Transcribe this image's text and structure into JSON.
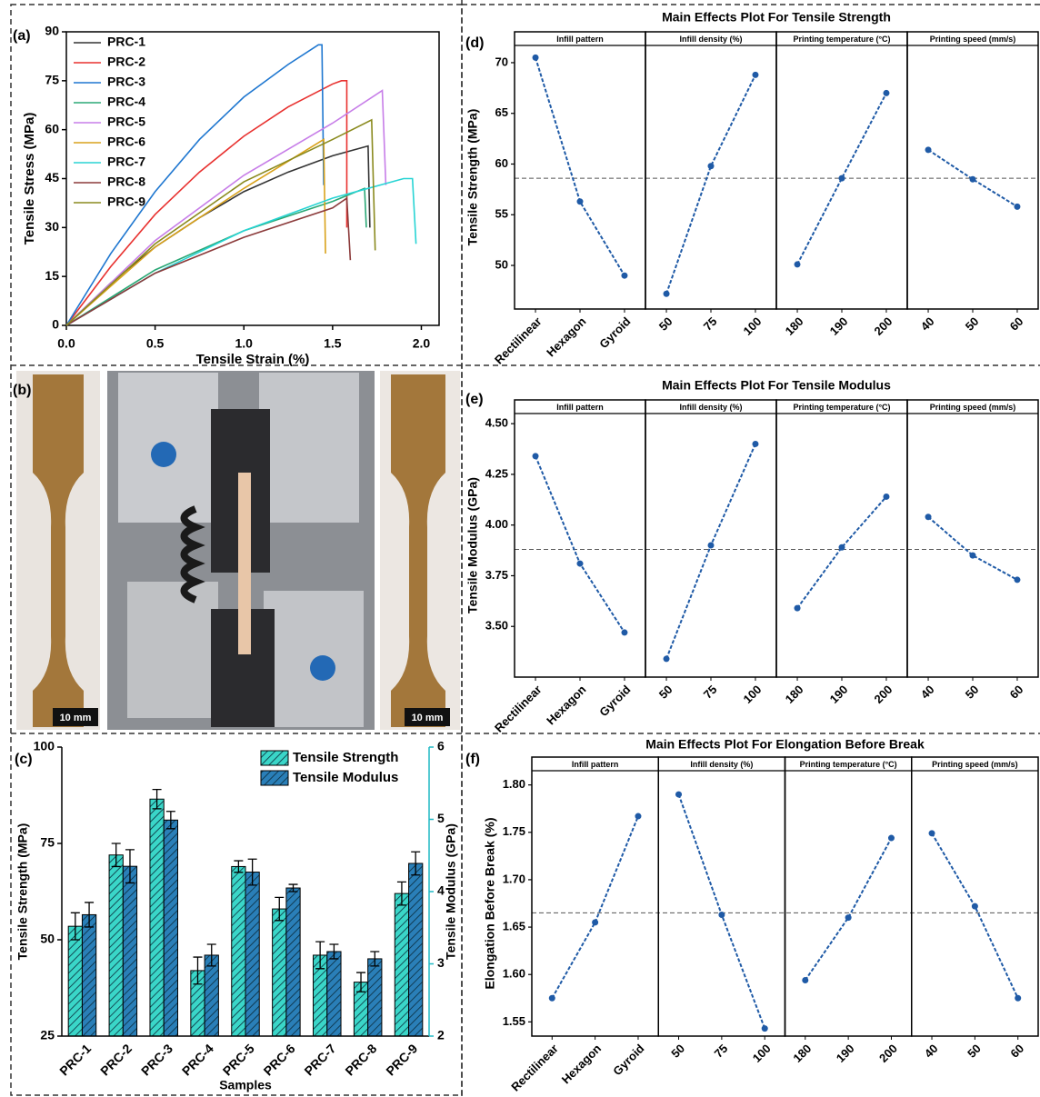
{
  "photo": {
    "label": "(b)",
    "scale_bars": [
      "10 mm",
      "10 mm"
    ]
  },
  "chart_data": [
    {
      "type": "line",
      "label": "(a)",
      "xlabel": "Tensile Strain (%)",
      "ylabel": "Tensile Stress (MPa)",
      "xlim": [
        0,
        2.1
      ],
      "xticks": [
        {
          "value": 0,
          "label": "0.0"
        },
        {
          "value": 0.5,
          "label": "0.5"
        },
        {
          "value": 1,
          "label": "1.0"
        },
        {
          "value": 1.5,
          "label": "1.5"
        },
        {
          "value": 2,
          "label": "2.0"
        }
      ],
      "ylim": [
        0,
        90
      ],
      "yticks": [
        0,
        15,
        30,
        45,
        60,
        75,
        90
      ],
      "legend": "top-left",
      "series": [
        {
          "name": "PRC-1",
          "color": "#333333",
          "x": [
            0,
            0.25,
            0.5,
            0.75,
            1.0,
            1.25,
            1.5,
            1.7,
            1.71
          ],
          "values": [
            0,
            13,
            24,
            33,
            41,
            47,
            52,
            55,
            30
          ]
        },
        {
          "name": "PRC-2",
          "color": "#e8312f",
          "x": [
            0,
            0.25,
            0.5,
            0.75,
            1.0,
            1.25,
            1.5,
            1.55,
            1.58,
            1.58
          ],
          "values": [
            0,
            18,
            34,
            47,
            58,
            67,
            74,
            75,
            75,
            30
          ]
        },
        {
          "name": "PRC-3",
          "color": "#1f77d0",
          "x": [
            0,
            0.25,
            0.5,
            0.75,
            1.0,
            1.25,
            1.42,
            1.44,
            1.45
          ],
          "values": [
            0,
            22,
            41,
            57,
            70,
            80,
            86,
            86,
            43
          ]
        },
        {
          "name": "PRC-4",
          "color": "#2aa876",
          "x": [
            0,
            0.5,
            1.0,
            1.5,
            1.68,
            1.69
          ],
          "values": [
            0,
            17,
            29,
            38,
            42,
            30
          ]
        },
        {
          "name": "PRC-5",
          "color": "#c77ee8",
          "x": [
            0,
            0.5,
            1.0,
            1.5,
            1.78,
            1.8
          ],
          "values": [
            0,
            26,
            46,
            62,
            72,
            43
          ]
        },
        {
          "name": "PRC-6",
          "color": "#d9a21b",
          "x": [
            0,
            0.5,
            1.0,
            1.45,
            1.46
          ],
          "values": [
            0,
            24,
            42,
            57,
            22
          ]
        },
        {
          "name": "PRC-7",
          "color": "#28d4d4",
          "x": [
            0,
            0.5,
            1.0,
            1.5,
            1.9,
            1.95,
            1.97
          ],
          "values": [
            0,
            16,
            29,
            39,
            45,
            45,
            25
          ]
        },
        {
          "name": "PRC-8",
          "color": "#8b3a3a",
          "x": [
            0,
            0.5,
            1.0,
            1.5,
            1.58,
            1.6
          ],
          "values": [
            0,
            16,
            27,
            36,
            39,
            20
          ]
        },
        {
          "name": "PRC-9",
          "color": "#8a8a1e",
          "x": [
            0,
            0.5,
            1.0,
            1.5,
            1.72,
            1.74
          ],
          "values": [
            0,
            25,
            44,
            57,
            63,
            23
          ]
        }
      ]
    },
    {
      "type": "bar",
      "label": "(c)",
      "xlabel": "Samples",
      "ylabel": "Tensile Strength (MPa)",
      "y2label": "Tensile Modulus (GPa)",
      "categories": [
        "PRC-1",
        "PRC-2",
        "PRC-3",
        "PRC-4",
        "PRC-5",
        "PRC-6",
        "PRC-7",
        "PRC-8",
        "PRC-9"
      ],
      "ylim": [
        25,
        100
      ],
      "yticks": [
        25,
        50,
        75,
        100
      ],
      "y2lim": [
        2,
        6
      ],
      "y2ticks": [
        2,
        3,
        4,
        5,
        6
      ],
      "y2color": "#1fb8c4",
      "legend": "top-right",
      "series": [
        {
          "name": "Tensile Strength",
          "color": "#3ad6c8",
          "values": [
            53.5,
            72,
            86.5,
            42,
            69,
            58,
            46,
            39,
            62
          ],
          "errors": [
            3.5,
            3,
            2.5,
            3.5,
            1.5,
            3,
            3.5,
            2.5,
            3
          ]
        },
        {
          "name": "Tensile Modulus",
          "color": "#2a7fb8",
          "axis": "y2",
          "values": [
            3.68,
            4.35,
            4.99,
            3.12,
            4.27,
            4.05,
            3.17,
            3.07,
            4.39
          ],
          "errors": [
            0.17,
            0.23,
            0.12,
            0.15,
            0.18,
            0.05,
            0.1,
            0.1,
            0.16
          ]
        }
      ]
    },
    {
      "type": "main_effects",
      "label": "(d)",
      "title": "Main Effects Plot For Tensile Strength",
      "ylabel": "Tensile Strength (MPa)",
      "color": "#1f5aa6",
      "ylim": [
        45.7,
        71.7
      ],
      "yticks": [
        50,
        55,
        60,
        65,
        70
      ],
      "mean": 58.6,
      "facets": [
        {
          "name": "Infill pattern",
          "categories": [
            "Rectilinear",
            "Hexagon",
            "Gyroid"
          ],
          "values": [
            70.5,
            56.3,
            49.0
          ]
        },
        {
          "name": "Infill density (%)",
          "categories": [
            "50",
            "75",
            "100"
          ],
          "values": [
            47.2,
            59.8,
            68.8
          ]
        },
        {
          "name": "Printing temperature (°C)",
          "categories": [
            "180",
            "190",
            "200"
          ],
          "values": [
            50.1,
            58.6,
            67.0
          ]
        },
        {
          "name": "Printing speed (mm/s)",
          "categories": [
            "40",
            "50",
            "60"
          ],
          "values": [
            61.4,
            58.5,
            55.8
          ]
        }
      ]
    },
    {
      "type": "main_effects",
      "label": "(e)",
      "title": "Main Effects Plot For Tensile Modulus",
      "ylabel": "Tensile Modulus (GPa)",
      "color": "#1f5aa6",
      "ylim": [
        3.25,
        4.55
      ],
      "yticks": [
        {
          "value": 3.5,
          "label": "3.50"
        },
        {
          "value": 3.75,
          "label": "3.75"
        },
        {
          "value": 4,
          "label": "4.00"
        },
        {
          "value": 4.25,
          "label": "4.25"
        },
        {
          "value": 4.5,
          "label": "4.50"
        }
      ],
      "mean": 3.88,
      "facets": [
        {
          "name": "Infill pattern",
          "categories": [
            "Rectilinear",
            "Hexagon",
            "Gyroid"
          ],
          "values": [
            4.34,
            3.81,
            3.47
          ]
        },
        {
          "name": "Infill density (%)",
          "categories": [
            "50",
            "75",
            "100"
          ],
          "values": [
            3.34,
            3.9,
            4.4
          ]
        },
        {
          "name": "Printing temperature (°C)",
          "categories": [
            "180",
            "190",
            "200"
          ],
          "values": [
            3.59,
            3.89,
            4.14
          ]
        },
        {
          "name": "Printing speed (mm/s)",
          "categories": [
            "40",
            "50",
            "60"
          ],
          "values": [
            4.04,
            3.85,
            3.73
          ]
        }
      ]
    },
    {
      "type": "main_effects",
      "label": "(f)",
      "title": "Main Effects Plot For Elongation Before Break",
      "ylabel": "Elongation Before Break (%)",
      "color": "#1f5aa6",
      "ylim": [
        1.535,
        1.815
      ],
      "yticks": [
        {
          "value": 1.55,
          "label": "1.55"
        },
        {
          "value": 1.6,
          "label": "1.60"
        },
        {
          "value": 1.65,
          "label": "1.65"
        },
        {
          "value": 1.7,
          "label": "1.70"
        },
        {
          "value": 1.75,
          "label": "1.75"
        },
        {
          "value": 1.8,
          "label": "1.80"
        }
      ],
      "mean": 1.665,
      "facets": [
        {
          "name": "Infill pattern",
          "categories": [
            "Rectilinear",
            "Hexagon",
            "Gyroid"
          ],
          "values": [
            1.575,
            1.655,
            1.767
          ]
        },
        {
          "name": "Infill density (%)",
          "categories": [
            "50",
            "75",
            "100"
          ],
          "values": [
            1.79,
            1.663,
            1.543
          ]
        },
        {
          "name": "Printing temperature (°C)",
          "categories": [
            "180",
            "190",
            "200"
          ],
          "values": [
            1.594,
            1.66,
            1.744
          ]
        },
        {
          "name": "Printing speed (mm/s)",
          "categories": [
            "40",
            "50",
            "60"
          ],
          "values": [
            1.749,
            1.672,
            1.575
          ]
        }
      ]
    }
  ]
}
